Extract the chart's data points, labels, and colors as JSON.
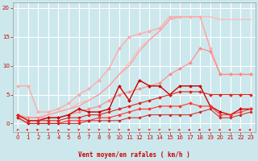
{
  "xlabel": "Vent moyen/en rafales ( km/h )",
  "bg_color": "#cce8ec",
  "grid_color": "#ffffff",
  "font_color": "#cc0000",
  "xlim": [
    -0.5,
    23.5
  ],
  "ylim": [
    -1.5,
    21
  ],
  "yticks": [
    0,
    5,
    10,
    15,
    20
  ],
  "xticks": [
    0,
    1,
    2,
    3,
    4,
    5,
    6,
    7,
    8,
    9,
    10,
    11,
    12,
    13,
    14,
    15,
    16,
    17,
    18,
    19,
    20,
    21,
    22,
    23
  ],
  "series": [
    {
      "x": [
        0,
        1,
        2,
        3,
        4,
        5,
        6,
        7,
        8,
        9,
        10,
        11,
        12,
        13,
        14,
        15,
        16,
        17,
        18,
        19,
        20,
        21,
        22,
        23
      ],
      "y": [
        1.0,
        1.0,
        1.0,
        1.5,
        2.0,
        2.5,
        3.5,
        4.0,
        5.0,
        6.5,
        8.5,
        10.5,
        13.0,
        14.5,
        16.0,
        18.0,
        18.5,
        18.5,
        18.5,
        18.5,
        18.0,
        18.0,
        18.0,
        18.0
      ],
      "color": "#ffbbbb",
      "marker": null,
      "linewidth": 1.0,
      "markersize": 0
    },
    {
      "x": [
        0,
        1,
        2,
        3,
        4,
        5,
        6,
        7,
        8,
        9,
        10,
        11,
        12,
        13,
        14,
        15,
        16,
        17,
        18,
        19,
        20,
        21,
        22,
        23
      ],
      "y": [
        6.5,
        6.5,
        2.0,
        2.0,
        2.5,
        3.5,
        5.0,
        6.0,
        7.5,
        9.5,
        13.0,
        15.0,
        15.5,
        16.0,
        16.5,
        18.5,
        18.5,
        18.5,
        18.5,
        13.0,
        8.5,
        8.5,
        8.5,
        8.5
      ],
      "color": "#ffaaaa",
      "marker": "D",
      "linewidth": 1.0,
      "markersize": 2.0
    },
    {
      "x": [
        0,
        1,
        2,
        3,
        4,
        5,
        6,
        7,
        8,
        9,
        10,
        11,
        12,
        13,
        14,
        15,
        16,
        17,
        18,
        19,
        20,
        21,
        22,
        23
      ],
      "y": [
        1.0,
        1.0,
        1.0,
        1.5,
        2.0,
        2.5,
        3.0,
        4.0,
        5.0,
        6.5,
        8.5,
        10.0,
        12.5,
        14.5,
        16.0,
        18.0,
        18.5,
        18.5,
        18.5,
        13.0,
        8.5,
        8.5,
        8.5,
        8.5
      ],
      "color": "#ff9999",
      "marker": null,
      "linewidth": 0.8,
      "markersize": 0
    },
    {
      "x": [
        0,
        1,
        2,
        3,
        4,
        5,
        6,
        7,
        8,
        9,
        10,
        11,
        12,
        13,
        14,
        15,
        16,
        17,
        18,
        19,
        20,
        21,
        22,
        23
      ],
      "y": [
        1.5,
        1.0,
        1.0,
        1.0,
        1.0,
        1.5,
        2.0,
        2.5,
        3.0,
        4.0,
        5.0,
        5.5,
        6.0,
        6.5,
        7.0,
        8.5,
        9.5,
        10.5,
        13.0,
        12.5,
        8.5,
        8.5,
        8.5,
        8.5
      ],
      "color": "#ff8888",
      "marker": "D",
      "linewidth": 0.8,
      "markersize": 2.0
    },
    {
      "x": [
        0,
        1,
        2,
        3,
        4,
        5,
        6,
        7,
        8,
        9,
        10,
        11,
        12,
        13,
        14,
        15,
        16,
        17,
        18,
        19,
        20,
        21,
        22,
        23
      ],
      "y": [
        1.5,
        0.5,
        0.5,
        1.0,
        1.0,
        1.5,
        2.5,
        2.0,
        2.0,
        2.5,
        6.5,
        4.0,
        7.5,
        6.5,
        6.5,
        5.0,
        6.5,
        6.5,
        6.5,
        3.0,
        2.0,
        1.5,
        2.5,
        2.5
      ],
      "color": "#cc0000",
      "marker": "D",
      "linewidth": 1.0,
      "markersize": 2.0
    },
    {
      "x": [
        0,
        1,
        2,
        3,
        4,
        5,
        6,
        7,
        8,
        9,
        10,
        11,
        12,
        13,
        14,
        15,
        16,
        17,
        18,
        19,
        20,
        21,
        22,
        23
      ],
      "y": [
        1.5,
        0.5,
        0.5,
        0.5,
        0.5,
        1.0,
        1.0,
        1.5,
        1.5,
        2.0,
        2.5,
        3.0,
        3.5,
        4.0,
        4.5,
        5.0,
        5.5,
        5.5,
        5.5,
        5.0,
        5.0,
        5.0,
        5.0,
        5.0
      ],
      "color": "#dd2222",
      "marker": "D",
      "linewidth": 0.8,
      "markersize": 2.0
    },
    {
      "x": [
        0,
        1,
        2,
        3,
        4,
        5,
        6,
        7,
        8,
        9,
        10,
        11,
        12,
        13,
        14,
        15,
        16,
        17,
        18,
        19,
        20,
        21,
        22,
        23
      ],
      "y": [
        1.0,
        0.0,
        0.0,
        0.0,
        0.0,
        0.5,
        0.5,
        0.5,
        1.0,
        1.0,
        1.5,
        2.0,
        2.5,
        2.5,
        3.0,
        3.0,
        3.0,
        3.5,
        3.0,
        3.0,
        1.5,
        1.5,
        2.0,
        2.5
      ],
      "color": "#ff3333",
      "marker": "D",
      "linewidth": 0.8,
      "markersize": 2.0
    },
    {
      "x": [
        0,
        1,
        2,
        3,
        4,
        5,
        6,
        7,
        8,
        9,
        10,
        11,
        12,
        13,
        14,
        15,
        16,
        17,
        18,
        19,
        20,
        21,
        22,
        23
      ],
      "y": [
        1.0,
        0.0,
        0.0,
        0.0,
        0.0,
        0.0,
        0.0,
        0.5,
        0.5,
        0.5,
        0.5,
        1.0,
        1.0,
        1.5,
        1.5,
        1.5,
        1.5,
        1.5,
        2.0,
        2.5,
        1.0,
        1.0,
        1.5,
        2.0
      ],
      "color": "#cc2222",
      "marker": "D",
      "linewidth": 0.7,
      "markersize": 1.8
    }
  ],
  "wind_arrows": {
    "angles": [
      225,
      270,
      270,
      315,
      0,
      45,
      45,
      45,
      45,
      45,
      315,
      270,
      315,
      315,
      315,
      315,
      270,
      270,
      270,
      270,
      270,
      270,
      270,
      270
    ],
    "color": "#cc0000"
  }
}
